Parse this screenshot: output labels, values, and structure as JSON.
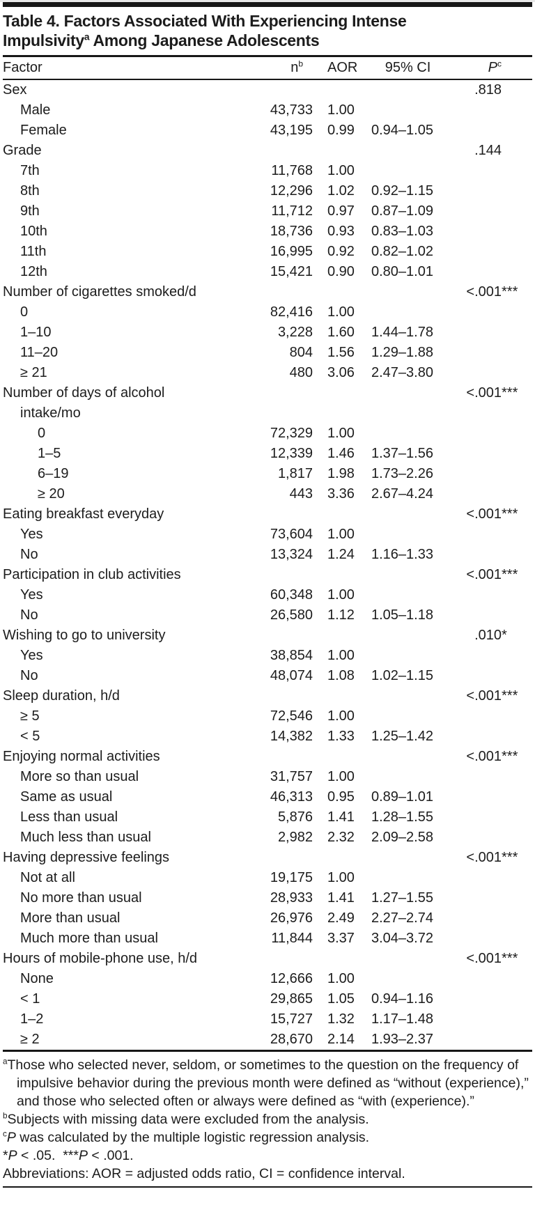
{
  "document": {
    "title": {
      "part1": "Table 4. Factors Associated With Experiencing Intense Impulsivity",
      "sup": "a",
      "part2": " Among Japanese Adolescents"
    },
    "columns": {
      "factor": "Factor",
      "n": "n",
      "n_sup": "b",
      "aor": "AOR",
      "ci": "95% CI",
      "p": "P",
      "p_sup": "c"
    },
    "rows": [
      {
        "label": "Sex",
        "indent": 0,
        "p": ".818",
        "stars": ""
      },
      {
        "label": "Male",
        "indent": 1,
        "n": "43,733",
        "aor": "1.00"
      },
      {
        "label": "Female",
        "indent": 1,
        "n": "43,195",
        "aor": "0.99",
        "ci": "0.94–1.05"
      },
      {
        "label": "Grade",
        "indent": 0,
        "p": ".144",
        "stars": ""
      },
      {
        "label": "7th",
        "indent": 1,
        "n": "11,768",
        "aor": "1.00"
      },
      {
        "label": "8th",
        "indent": 1,
        "n": "12,296",
        "aor": "1.02",
        "ci": "0.92–1.15"
      },
      {
        "label": "9th",
        "indent": 1,
        "n": "11,712",
        "aor": "0.97",
        "ci": "0.87–1.09"
      },
      {
        "label": "10th",
        "indent": 1,
        "n": "18,736",
        "aor": "0.93",
        "ci": "0.83–1.03"
      },
      {
        "label": "11th",
        "indent": 1,
        "n": "16,995",
        "aor": "0.92",
        "ci": "0.82–1.02"
      },
      {
        "label": "12th",
        "indent": 1,
        "n": "15,421",
        "aor": "0.90",
        "ci": "0.80–1.01"
      },
      {
        "label": "Number of cigarettes smoked/d",
        "indent": 0,
        "p": "<.001",
        "stars": "***"
      },
      {
        "label": "0",
        "indent": 1,
        "n": "82,416",
        "aor": "1.00"
      },
      {
        "label": "1–10",
        "indent": 1,
        "n": "3,228",
        "aor": "1.60",
        "ci": "1.44–1.78"
      },
      {
        "label": "11–20",
        "indent": 1,
        "n": "804",
        "aor": "1.56",
        "ci": "1.29–1.88"
      },
      {
        "label": "≥ 21",
        "indent": 1,
        "n": "480",
        "aor": "3.06",
        "ci": "2.47–3.80"
      },
      {
        "label": "Number of days of alcohol\nintake/mo",
        "indent": 0,
        "p": "<.001",
        "stars": "***"
      },
      {
        "label": "0",
        "indent": 2,
        "n": "72,329",
        "aor": "1.00"
      },
      {
        "label": "1–5",
        "indent": 2,
        "n": "12,339",
        "aor": "1.46",
        "ci": "1.37–1.56"
      },
      {
        "label": "6–19",
        "indent": 2,
        "n": "1,817",
        "aor": "1.98",
        "ci": "1.73–2.26"
      },
      {
        "label": "≥ 20",
        "indent": 2,
        "n": "443",
        "aor": "3.36",
        "ci": "2.67–4.24"
      },
      {
        "label": "Eating breakfast everyday",
        "indent": 0,
        "p": "<.001",
        "stars": "***"
      },
      {
        "label": "Yes",
        "indent": 1,
        "n": "73,604",
        "aor": "1.00"
      },
      {
        "label": "No",
        "indent": 1,
        "n": "13,324",
        "aor": "1.24",
        "ci": "1.16–1.33"
      },
      {
        "label": "Participation in club activities",
        "indent": 0,
        "p": "<.001",
        "stars": "***"
      },
      {
        "label": "Yes",
        "indent": 1,
        "n": "60,348",
        "aor": "1.00"
      },
      {
        "label": "No",
        "indent": 1,
        "n": "26,580",
        "aor": "1.12",
        "ci": "1.05–1.18"
      },
      {
        "label": "Wishing to go to university",
        "indent": 0,
        "p": ".010",
        "stars": "*"
      },
      {
        "label": "Yes",
        "indent": 1,
        "n": "38,854",
        "aor": "1.00"
      },
      {
        "label": "No",
        "indent": 1,
        "n": "48,074",
        "aor": "1.08",
        "ci": "1.02–1.15"
      },
      {
        "label": "Sleep duration, h/d",
        "indent": 0,
        "p": "<.001",
        "stars": "***"
      },
      {
        "label": "≥ 5",
        "indent": 1,
        "n": "72,546",
        "aor": "1.00"
      },
      {
        "label": "< 5",
        "indent": 1,
        "n": "14,382",
        "aor": "1.33",
        "ci": "1.25–1.42"
      },
      {
        "label": "Enjoying normal activities",
        "indent": 0,
        "p": "<.001",
        "stars": "***"
      },
      {
        "label": "More so than usual",
        "indent": 1,
        "n": "31,757",
        "aor": "1.00"
      },
      {
        "label": "Same as usual",
        "indent": 1,
        "n": "46,313",
        "aor": "0.95",
        "ci": "0.89–1.01"
      },
      {
        "label": "Less than usual",
        "indent": 1,
        "n": "5,876",
        "aor": "1.41",
        "ci": "1.28–1.55"
      },
      {
        "label": "Much less than usual",
        "indent": 1,
        "n": "2,982",
        "aor": "2.32",
        "ci": "2.09–2.58"
      },
      {
        "label": "Having depressive feelings",
        "indent": 0,
        "p": "<.001",
        "stars": "***"
      },
      {
        "label": "Not at all",
        "indent": 1,
        "n": "19,175",
        "aor": "1.00"
      },
      {
        "label": "No more than usual",
        "indent": 1,
        "n": "28,933",
        "aor": "1.41",
        "ci": "1.27–1.55"
      },
      {
        "label": "More than usual",
        "indent": 1,
        "n": "26,976",
        "aor": "2.49",
        "ci": "2.27–2.74"
      },
      {
        "label": "Much more than usual",
        "indent": 1,
        "n": "11,844",
        "aor": "3.37",
        "ci": "3.04–3.72"
      },
      {
        "label": "Hours of mobile-phone use, h/d",
        "indent": 0,
        "p": "<.001",
        "stars": "***"
      },
      {
        "label": "None",
        "indent": 1,
        "n": "12,666",
        "aor": "1.00"
      },
      {
        "label": "< 1",
        "indent": 1,
        "n": "29,865",
        "aor": "1.05",
        "ci": "0.94–1.16"
      },
      {
        "label": "1–2",
        "indent": 1,
        "n": "15,727",
        "aor": "1.32",
        "ci": "1.17–1.48"
      },
      {
        "label": "≥ 2",
        "indent": 1,
        "n": "28,670",
        "aor": "2.14",
        "ci": "1.93–2.37"
      }
    ],
    "footnotes": [
      {
        "sup": "a",
        "segments": [
          {
            "t": "Those who selected never, seldom, or sometimes to the question on the frequency of impulsive behavior during the previous month were defined as “without (experience),” and those who selected often or always were defined as “with (experience).”"
          }
        ]
      },
      {
        "sup": "b",
        "segments": [
          {
            "t": "Subjects with missing data were excluded from the analysis."
          }
        ]
      },
      {
        "sup": "c",
        "segments": [
          {
            "t": "P",
            "i": true
          },
          {
            "t": " was calculated by the multiple logistic regression analysis."
          }
        ]
      },
      {
        "sup": "",
        "segments": [
          {
            "t": "*"
          },
          {
            "t": "P",
            "i": true
          },
          {
            "t": " < .05.  ***"
          },
          {
            "t": "P",
            "i": true
          },
          {
            "t": " < .001."
          }
        ]
      },
      {
        "sup": "",
        "segments": [
          {
            "t": "Abbreviations: AOR = adjusted odds ratio, CI = confidence interval."
          }
        ]
      }
    ],
    "colors": {
      "text": "#1c1c1c",
      "rule": "#171717",
      "background": "#ffffff"
    }
  }
}
